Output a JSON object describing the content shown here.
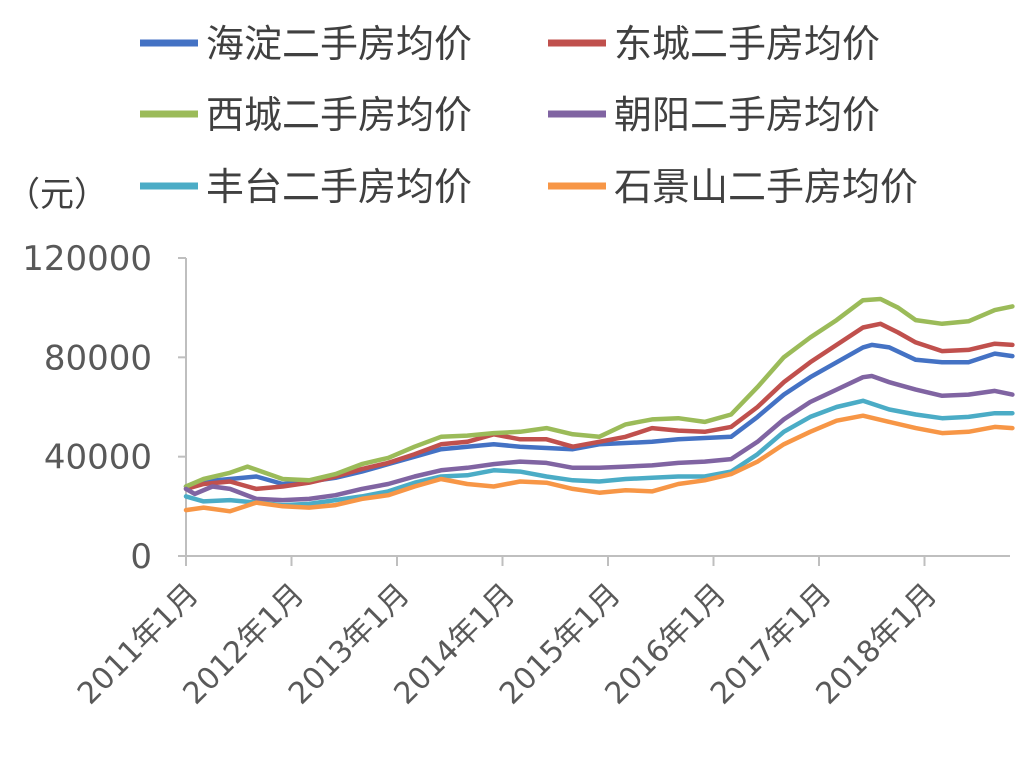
{
  "chart_data": {
    "type": "line",
    "ylabel": "（元）",
    "ylim": [
      0,
      120000
    ],
    "yticks": [
      0,
      40000,
      80000,
      120000
    ],
    "xlim": [
      "2011-01",
      "2018-11"
    ],
    "xticks": [
      "2011-01",
      "2012-01",
      "2013-01",
      "2014-01",
      "2015-01",
      "2016-01",
      "2017-01",
      "2018-01"
    ],
    "xtick_labels": [
      "2011年1月",
      "2012年1月",
      "2013年1月",
      "2014年1月",
      "2015年1月",
      "2016年1月",
      "2017年1月",
      "2018年1月"
    ],
    "grid": false,
    "legend_position": "top",
    "series": [
      {
        "name": "海淀二手房均价",
        "color": "#4472C4",
        "points": [
          [
            "2011-01",
            28000
          ],
          [
            "2011-03",
            30000
          ],
          [
            "2011-06",
            31000
          ],
          [
            "2011-09",
            32000
          ],
          [
            "2011-12",
            29000
          ],
          [
            "2012-03",
            30000
          ],
          [
            "2012-06",
            31500
          ],
          [
            "2012-09",
            34000
          ],
          [
            "2012-12",
            37000
          ],
          [
            "2013-03",
            40000
          ],
          [
            "2013-06",
            43000
          ],
          [
            "2013-09",
            44000
          ],
          [
            "2013-12",
            45000
          ],
          [
            "2014-03",
            44000
          ],
          [
            "2014-06",
            43500
          ],
          [
            "2014-09",
            43000
          ],
          [
            "2014-12",
            45000
          ],
          [
            "2015-03",
            45500
          ],
          [
            "2015-06",
            46000
          ],
          [
            "2015-09",
            47000
          ],
          [
            "2015-12",
            47500
          ],
          [
            "2016-03",
            48000
          ],
          [
            "2016-06",
            56000
          ],
          [
            "2016-09",
            65000
          ],
          [
            "2016-12",
            72000
          ],
          [
            "2017-03",
            78000
          ],
          [
            "2017-06",
            84000
          ],
          [
            "2017-07",
            85000
          ],
          [
            "2017-09",
            84000
          ],
          [
            "2017-12",
            79000
          ],
          [
            "2018-03",
            78000
          ],
          [
            "2018-06",
            78000
          ],
          [
            "2018-09",
            81500
          ],
          [
            "2018-11",
            80500
          ]
        ]
      },
      {
        "name": "东城二手房均价",
        "color": "#C0504D",
        "points": [
          [
            "2011-01",
            27000
          ],
          [
            "2011-03",
            29000
          ],
          [
            "2011-06",
            30000
          ],
          [
            "2011-09",
            27000
          ],
          [
            "2011-12",
            28000
          ],
          [
            "2012-03",
            29500
          ],
          [
            "2012-06",
            32000
          ],
          [
            "2012-09",
            35000
          ],
          [
            "2012-12",
            37500
          ],
          [
            "2013-03",
            41000
          ],
          [
            "2013-06",
            45000
          ],
          [
            "2013-09",
            46000
          ],
          [
            "2013-12",
            49000
          ],
          [
            "2014-03",
            47000
          ],
          [
            "2014-06",
            47000
          ],
          [
            "2014-09",
            44000
          ],
          [
            "2014-12",
            46000
          ],
          [
            "2015-03",
            48000
          ],
          [
            "2015-06",
            51500
          ],
          [
            "2015-09",
            50500
          ],
          [
            "2015-12",
            50000
          ],
          [
            "2016-03",
            52000
          ],
          [
            "2016-06",
            60000
          ],
          [
            "2016-09",
            70000
          ],
          [
            "2016-12",
            78000
          ],
          [
            "2017-03",
            85000
          ],
          [
            "2017-06",
            92000
          ],
          [
            "2017-08",
            93500
          ],
          [
            "2017-10",
            90000
          ],
          [
            "2017-12",
            86000
          ],
          [
            "2018-03",
            82500
          ],
          [
            "2018-06",
            83000
          ],
          [
            "2018-09",
            85500
          ],
          [
            "2018-11",
            85000
          ]
        ]
      },
      {
        "name": "西城二手房均价",
        "color": "#9BBB59",
        "points": [
          [
            "2011-01",
            28000
          ],
          [
            "2011-03",
            31000
          ],
          [
            "2011-06",
            33500
          ],
          [
            "2011-08",
            36000
          ],
          [
            "2011-12",
            31000
          ],
          [
            "2012-03",
            30500
          ],
          [
            "2012-06",
            33000
          ],
          [
            "2012-09",
            37000
          ],
          [
            "2012-12",
            39500
          ],
          [
            "2013-03",
            44000
          ],
          [
            "2013-06",
            48000
          ],
          [
            "2013-09",
            48500
          ],
          [
            "2013-12",
            49500
          ],
          [
            "2014-03",
            50000
          ],
          [
            "2014-06",
            51500
          ],
          [
            "2014-09",
            49000
          ],
          [
            "2014-12",
            48000
          ],
          [
            "2015-03",
            53000
          ],
          [
            "2015-06",
            55000
          ],
          [
            "2015-09",
            55500
          ],
          [
            "2015-12",
            54000
          ],
          [
            "2016-03",
            57000
          ],
          [
            "2016-06",
            68000
          ],
          [
            "2016-09",
            80000
          ],
          [
            "2016-12",
            88000
          ],
          [
            "2017-03",
            95000
          ],
          [
            "2017-06",
            103000
          ],
          [
            "2017-08",
            103500
          ],
          [
            "2017-10",
            100000
          ],
          [
            "2017-12",
            95000
          ],
          [
            "2018-03",
            93500
          ],
          [
            "2018-06",
            94500
          ],
          [
            "2018-09",
            99000
          ],
          [
            "2018-11",
            100500
          ]
        ]
      },
      {
        "name": "朝阳二手房均价",
        "color": "#8064A2",
        "points": [
          [
            "2011-01",
            27000
          ],
          [
            "2011-02",
            25000
          ],
          [
            "2011-04",
            28000
          ],
          [
            "2011-06",
            27000
          ],
          [
            "2011-09",
            23000
          ],
          [
            "2011-12",
            22500
          ],
          [
            "2012-03",
            23000
          ],
          [
            "2012-06",
            24500
          ],
          [
            "2012-09",
            27000
          ],
          [
            "2012-12",
            29000
          ],
          [
            "2013-03",
            32000
          ],
          [
            "2013-06",
            34500
          ],
          [
            "2013-09",
            35500
          ],
          [
            "2013-12",
            37000
          ],
          [
            "2014-03",
            38000
          ],
          [
            "2014-06",
            37500
          ],
          [
            "2014-09",
            35500
          ],
          [
            "2014-12",
            35500
          ],
          [
            "2015-03",
            36000
          ],
          [
            "2015-06",
            36500
          ],
          [
            "2015-09",
            37500
          ],
          [
            "2015-12",
            38000
          ],
          [
            "2016-03",
            39000
          ],
          [
            "2016-06",
            46000
          ],
          [
            "2016-09",
            55000
          ],
          [
            "2016-12",
            62000
          ],
          [
            "2017-03",
            67000
          ],
          [
            "2017-06",
            72000
          ],
          [
            "2017-07",
            72500
          ],
          [
            "2017-09",
            70000
          ],
          [
            "2017-12",
            67000
          ],
          [
            "2018-03",
            64500
          ],
          [
            "2018-06",
            65000
          ],
          [
            "2018-09",
            66500
          ],
          [
            "2018-11",
            65000
          ]
        ]
      },
      {
        "name": "丰台二手房均价",
        "color": "#4BACC6",
        "points": [
          [
            "2011-01",
            24000
          ],
          [
            "2011-03",
            22000
          ],
          [
            "2011-06",
            22500
          ],
          [
            "2011-09",
            21500
          ],
          [
            "2011-12",
            20500
          ],
          [
            "2012-03",
            21000
          ],
          [
            "2012-06",
            22500
          ],
          [
            "2012-09",
            24000
          ],
          [
            "2012-12",
            26000
          ],
          [
            "2013-03",
            29500
          ],
          [
            "2013-06",
            32000
          ],
          [
            "2013-09",
            32500
          ],
          [
            "2013-12",
            34500
          ],
          [
            "2014-03",
            34000
          ],
          [
            "2014-06",
            32000
          ],
          [
            "2014-09",
            30500
          ],
          [
            "2014-12",
            30000
          ],
          [
            "2015-03",
            31000
          ],
          [
            "2015-06",
            31500
          ],
          [
            "2015-09",
            32000
          ],
          [
            "2015-12",
            32000
          ],
          [
            "2016-03",
            34000
          ],
          [
            "2016-06",
            41000
          ],
          [
            "2016-09",
            50000
          ],
          [
            "2016-12",
            56000
          ],
          [
            "2017-03",
            60000
          ],
          [
            "2017-06",
            62500
          ],
          [
            "2017-09",
            59000
          ],
          [
            "2017-12",
            57000
          ],
          [
            "2018-03",
            55500
          ],
          [
            "2018-06",
            56000
          ],
          [
            "2018-09",
            57500
          ],
          [
            "2018-11",
            57500
          ]
        ]
      },
      {
        "name": "石景山二手房均价",
        "color": "#F79646",
        "points": [
          [
            "2011-01",
            18500
          ],
          [
            "2011-03",
            19500
          ],
          [
            "2011-06",
            18000
          ],
          [
            "2011-09",
            21500
          ],
          [
            "2011-12",
            20000
          ],
          [
            "2012-03",
            19500
          ],
          [
            "2012-06",
            20500
          ],
          [
            "2012-09",
            23000
          ],
          [
            "2012-12",
            24500
          ],
          [
            "2013-03",
            28000
          ],
          [
            "2013-06",
            31000
          ],
          [
            "2013-09",
            29000
          ],
          [
            "2013-12",
            28000
          ],
          [
            "2014-03",
            30000
          ],
          [
            "2014-06",
            29500
          ],
          [
            "2014-09",
            27000
          ],
          [
            "2014-12",
            25500
          ],
          [
            "2015-03",
            26500
          ],
          [
            "2015-06",
            26000
          ],
          [
            "2015-09",
            29000
          ],
          [
            "2015-12",
            30500
          ],
          [
            "2016-03",
            33000
          ],
          [
            "2016-06",
            38000
          ],
          [
            "2016-09",
            45000
          ],
          [
            "2016-12",
            50000
          ],
          [
            "2017-03",
            54500
          ],
          [
            "2017-06",
            56500
          ],
          [
            "2017-09",
            54000
          ],
          [
            "2017-12",
            51500
          ],
          [
            "2018-03",
            49500
          ],
          [
            "2018-06",
            50000
          ],
          [
            "2018-09",
            52000
          ],
          [
            "2018-11",
            51500
          ]
        ]
      }
    ]
  }
}
